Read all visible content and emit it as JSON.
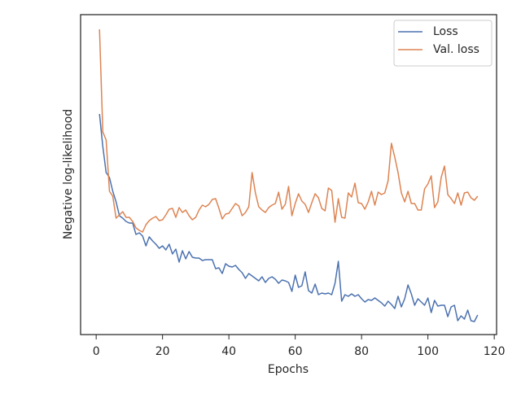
{
  "chart_data": {
    "type": "line",
    "x_label": "Epochs",
    "y_label": "Negative log-likelihood",
    "x": [
      1,
      2,
      3,
      4,
      5,
      6,
      7,
      8,
      9,
      10,
      11,
      12,
      13,
      14,
      15,
      16,
      17,
      18,
      19,
      20,
      21,
      22,
      23,
      24,
      25,
      26,
      27,
      28,
      29,
      30,
      31,
      32,
      33,
      34,
      35,
      36,
      37,
      38,
      39,
      40,
      41,
      42,
      43,
      44,
      45,
      46,
      47,
      48,
      49,
      50,
      51,
      52,
      53,
      54,
      55,
      56,
      57,
      58,
      59,
      60,
      61,
      62,
      63,
      64,
      65,
      66,
      67,
      68,
      69,
      70,
      71,
      72,
      73,
      74,
      75,
      76,
      77,
      78,
      79,
      80,
      81,
      82,
      83,
      84,
      85,
      86,
      87,
      88,
      89,
      90,
      91,
      92,
      93,
      94,
      95,
      96,
      97,
      98,
      99,
      100,
      101,
      102,
      103,
      104,
      105,
      106,
      107,
      108,
      109,
      110,
      111,
      112,
      113,
      114,
      115
    ],
    "series": [
      {
        "name": "Loss",
        "color": "#4c72b0",
        "values": [
          271,
          231,
          199,
          193,
          176,
          163,
          146,
          143,
          139,
          137,
          137,
          123,
          125,
          121,
          109,
          120,
          115,
          111,
          106,
          109,
          104,
          111,
          99,
          105,
          89,
          103,
          93,
          102,
          95,
          94,
          94,
          91,
          92,
          92,
          92,
          81,
          82,
          75,
          87,
          84,
          83,
          85,
          80,
          76,
          69,
          75,
          72,
          69,
          66,
          71,
          64,
          69,
          71,
          68,
          63,
          67,
          66,
          64,
          53,
          73,
          58,
          60,
          77,
          54,
          51,
          62,
          49,
          51,
          50,
          51,
          49,
          63,
          90,
          41,
          49,
          47,
          50,
          47,
          49,
          44,
          40,
          43,
          42,
          45,
          42,
          39,
          35,
          41,
          37,
          32,
          47,
          34,
          44,
          61,
          50,
          36,
          44,
          40,
          36,
          45,
          27,
          42,
          35,
          36,
          36,
          22,
          34,
          36,
          17,
          23,
          19,
          30,
          17,
          16,
          24
        ]
      },
      {
        "name": "Val. loss",
        "color": "#dd8452",
        "values": [
          375,
          249,
          239,
          176,
          170,
          143,
          147,
          151,
          144,
          144,
          139,
          131,
          128,
          126,
          135,
          140,
          143,
          145,
          140,
          141,
          147,
          154,
          155,
          144,
          156,
          150,
          153,
          146,
          141,
          144,
          153,
          159,
          157,
          160,
          166,
          167,
          155,
          142,
          148,
          149,
          155,
          161,
          158,
          146,
          150,
          157,
          199,
          174,
          157,
          153,
          150,
          156,
          159,
          161,
          175,
          154,
          160,
          182,
          146,
          161,
          173,
          164,
          160,
          150,
          162,
          173,
          168,
          155,
          152,
          180,
          177,
          138,
          167,
          144,
          143,
          174,
          169,
          186,
          162,
          161,
          154,
          163,
          176,
          159,
          175,
          172,
          174,
          189,
          235,
          218,
          199,
          174,
          163,
          176,
          161,
          161,
          153,
          153,
          179,
          185,
          195,
          156,
          163,
          193,
          207,
          172,
          167,
          161,
          174,
          159,
          174,
          175,
          168,
          165,
          170
        ]
      }
    ],
    "xlim": [
      -4.7,
      120.7
    ],
    "xticks": [
      0,
      20,
      40,
      60,
      80,
      100,
      120
    ],
    "ylim": [
      0,
      393
    ],
    "legend": "upper right"
  }
}
